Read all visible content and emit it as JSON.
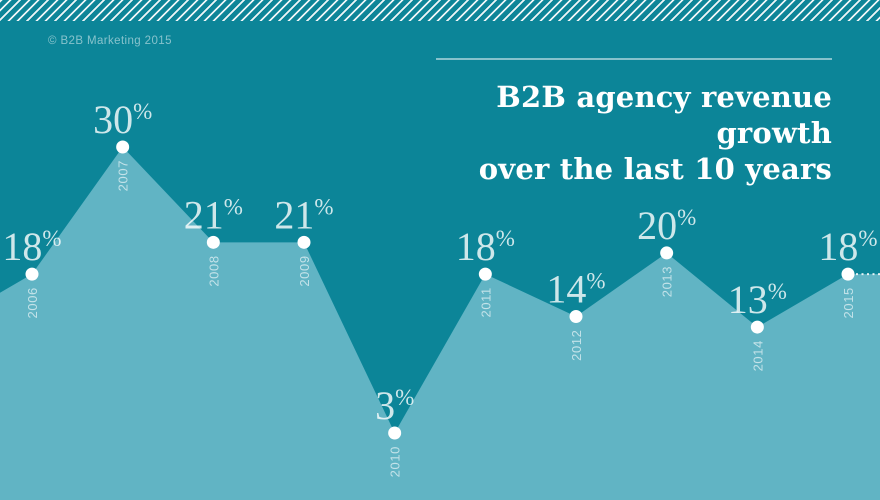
{
  "meta": {
    "copyright": "© B2B Marketing 2015"
  },
  "title": {
    "line1": "B2B agency revenue growth",
    "line2": "over the last 10 years"
  },
  "colors": {
    "background": "#0c8598",
    "area_fill": "#61b4c4",
    "dot": "#ffffff",
    "value_label": "rgba(255,255,255,0.8)",
    "year_label": "rgba(255,255,255,0.62)",
    "title_text": "#ffffff",
    "rule": "rgba(255,255,255,0.5)",
    "projection_line": "#ffffff"
  },
  "chart_data": {
    "type": "area",
    "title": "B2B agency revenue growth over the last 10 years",
    "categories": [
      "2006",
      "2007",
      "2008",
      "2009",
      "2010",
      "2011",
      "2012",
      "2013",
      "2014",
      "2015"
    ],
    "values": [
      18,
      30,
      21,
      21,
      3,
      18,
      14,
      20,
      13,
      18
    ],
    "unit": "%",
    "xlabel": "",
    "ylabel": "",
    "axes_visible": false,
    "grid": false,
    "legend": "none",
    "value_labels_position": "above each point",
    "category_labels_style": "rotated vertical, below each point",
    "dotted_projection_after_last_point": true
  }
}
